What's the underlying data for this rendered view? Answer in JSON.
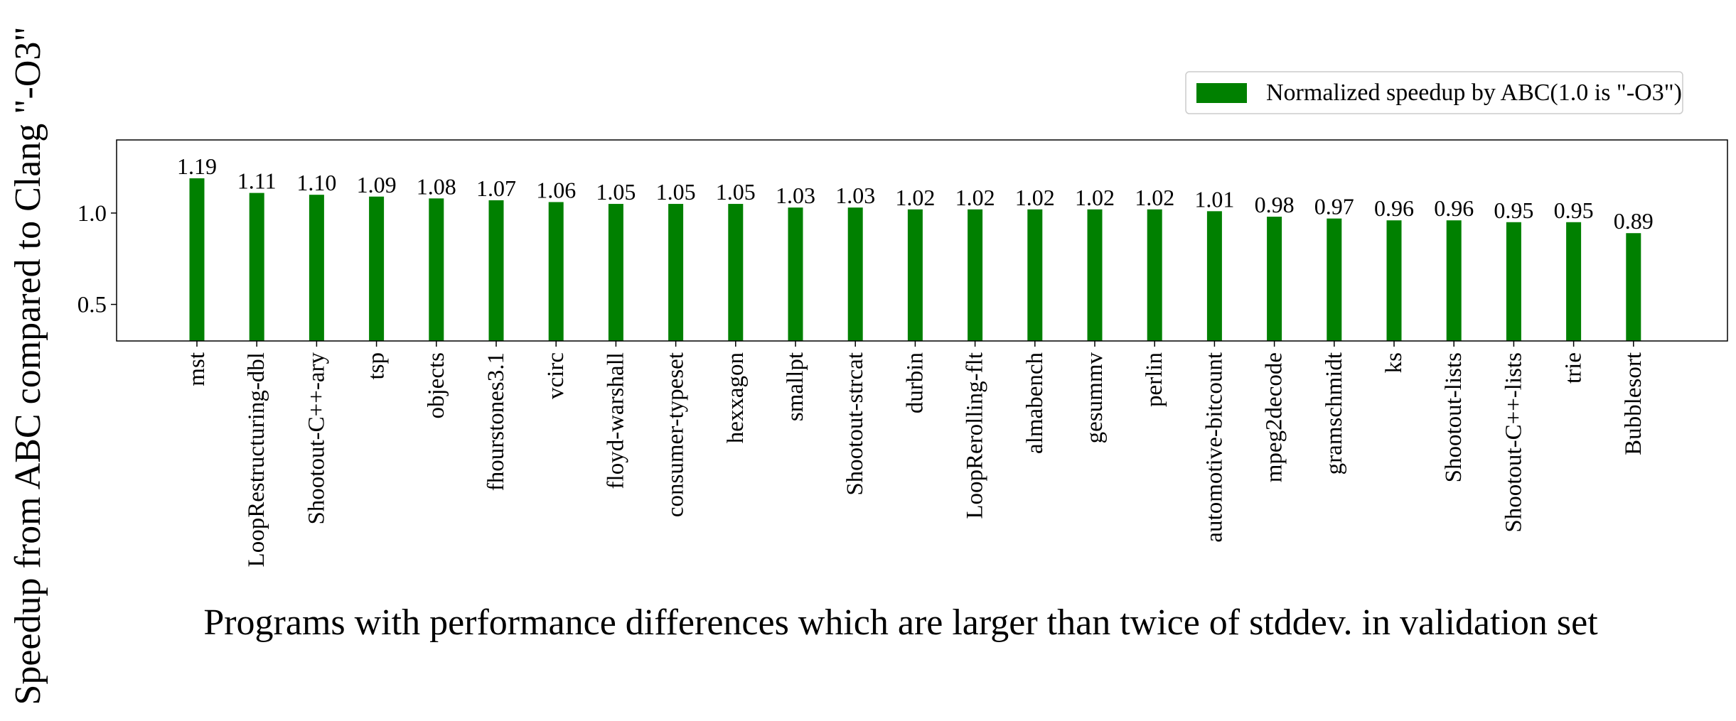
{
  "chart_data": {
    "type": "bar",
    "title": "",
    "xlabel": "Programs with performance differences which are larger than twice of stddev. in validation set",
    "ylabel": "Speedup from ABC compared to Clang \"-O3\"",
    "ylim": [
      0.3,
      1.4
    ],
    "yticks": [
      0.5,
      1.0
    ],
    "ytick_labels": [
      "0.5",
      "1.0"
    ],
    "grid": false,
    "legend_position": "top-right, outside plot",
    "bar_color": "#008000",
    "categories": [
      "mst",
      "LoopRestructuring-dbl",
      "Shootout-C++-ary",
      "tsp",
      "objects",
      "fhourstones3.1",
      "vcirc",
      "floyd-warshall",
      "consumer-typeset",
      "hexxagon",
      "smallpt",
      "Shootout-strcat",
      "durbin",
      "LoopRerolling-flt",
      "almabench",
      "gesummv",
      "perlin",
      "automotive-bitcount",
      "mpeg2decode",
      "gramschmidt",
      "ks",
      "Shootout-lists",
      "Shootout-C++-lists",
      "trie",
      "Bubblesort"
    ],
    "series": [
      {
        "name": "Normalized speedup by ABC(1.0 is \"-O3\")",
        "values": [
          1.19,
          1.11,
          1.1,
          1.09,
          1.08,
          1.07,
          1.06,
          1.05,
          1.05,
          1.05,
          1.03,
          1.03,
          1.02,
          1.02,
          1.02,
          1.02,
          1.02,
          1.01,
          0.98,
          0.97,
          0.96,
          0.96,
          0.95,
          0.95,
          0.89
        ],
        "labels": [
          "1.19",
          "1.11",
          "1.10",
          "1.09",
          "1.08",
          "1.07",
          "1.06",
          "1.05",
          "1.05",
          "1.05",
          "1.03",
          "1.03",
          "1.02",
          "1.02",
          "1.02",
          "1.02",
          "1.02",
          "1.01",
          "0.98",
          "0.97",
          "0.96",
          "0.96",
          "0.95",
          "0.95",
          "0.89"
        ]
      }
    ]
  }
}
